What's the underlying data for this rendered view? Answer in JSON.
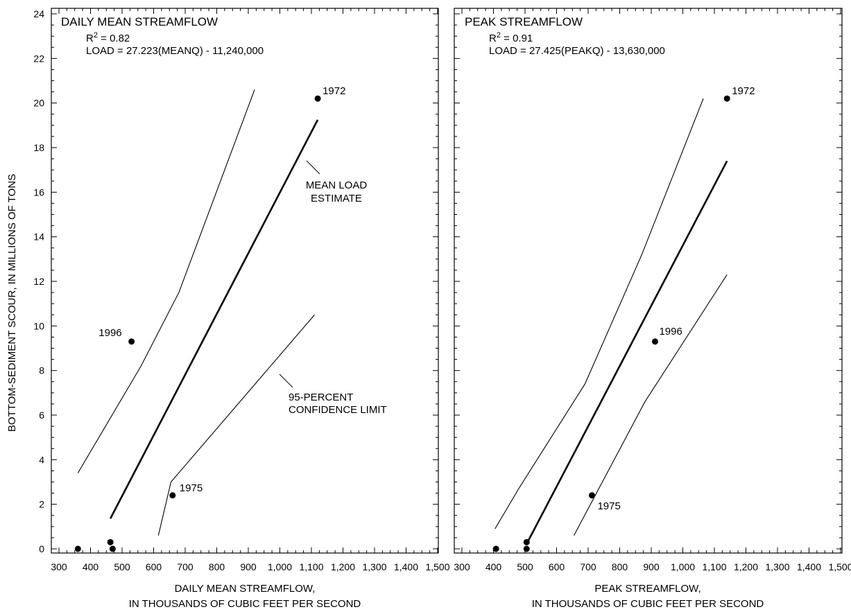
{
  "figure": {
    "y_axis_label": "BOTTOM-SEDIMENT SCOUR, IN MILLIONS OF TONS"
  },
  "chart_data": [
    {
      "type": "scatter",
      "title": "DAILY MEAN STREAMFLOW",
      "r2_prefix": "R",
      "r2_sup": "2",
      "r2_value": " = 0.82",
      "equation": "LOAD = 27.223(MEANQ) - 11,240,000",
      "xlabel_line1": "DAILY MEAN STREAMFLOW,",
      "xlabel_line2": "IN THOUSANDS OF CUBIC FEET PER SECOND",
      "ylabel": "BOTTOM-SEDIMENT SCOUR, IN MILLIONS OF TONS",
      "xlim": [
        300,
        1500
      ],
      "ylim": [
        0,
        24
      ],
      "x_ticks": [
        300,
        400,
        500,
        600,
        700,
        800,
        900,
        1000,
        1100,
        1200,
        1300,
        1400,
        1500
      ],
      "x_tick_labels": [
        "300",
        "400",
        "500",
        "600",
        "700",
        "800",
        "900",
        "1,000",
        "1,100",
        "1,200",
        "1,300",
        "1,400",
        "1,500"
      ],
      "y_ticks": [
        0,
        2,
        4,
        6,
        8,
        10,
        12,
        14,
        16,
        18,
        20,
        22,
        24
      ],
      "y_tick_labels": [
        "0",
        "2",
        "4",
        "6",
        "8",
        "10",
        "12",
        "14",
        "16",
        "18",
        "20",
        "22",
        "24"
      ],
      "points": [
        {
          "x": 360,
          "y": 0.0,
          "label": ""
        },
        {
          "x": 463,
          "y": 0.3,
          "label": ""
        },
        {
          "x": 470,
          "y": 0.0,
          "label": ""
        },
        {
          "x": 530,
          "y": 9.3,
          "label": "1996"
        },
        {
          "x": 660,
          "y": 2.4,
          "label": "1975"
        },
        {
          "x": 1120,
          "y": 20.2,
          "label": "1972"
        }
      ],
      "mean_line": {
        "x": [
          463,
          1120
        ],
        "y": [
          1.36,
          19.25
        ]
      },
      "upper_limit": {
        "x": [
          360,
          560,
          680,
          920
        ],
        "y": [
          3.4,
          8.2,
          11.5,
          20.6
        ]
      },
      "lower_limit": {
        "x": [
          615,
          655,
          1110
        ],
        "y": [
          0.6,
          3.0,
          10.5
        ]
      },
      "annotations": [
        {
          "line1": "MEAN LOAD",
          "line2": "ESTIMATE"
        },
        {
          "line1": "95-PERCENT",
          "line2": "CONFIDENCE LIMIT"
        }
      ]
    },
    {
      "type": "scatter",
      "title": "PEAK STREAMFLOW",
      "r2_prefix": "R",
      "r2_sup": "2",
      "r2_value": " = 0.91",
      "equation": "LOAD = 27.425(PEAKQ) - 13,630,000",
      "xlabel_line1": "PEAK STREAMFLOW,",
      "xlabel_line2": "IN THOUSANDS OF CUBIC FEET PER SECOND",
      "xlim": [
        300,
        1500
      ],
      "ylim": [
        0,
        24
      ],
      "x_ticks": [
        300,
        400,
        500,
        600,
        700,
        800,
        900,
        1000,
        1100,
        1200,
        1300,
        1400,
        1500
      ],
      "x_tick_labels": [
        "300",
        "400",
        "500",
        "600",
        "700",
        "800",
        "900",
        "1,000",
        "1,100",
        "1,200",
        "1,300",
        "1,400",
        "1,500"
      ],
      "points": [
        {
          "x": 408,
          "y": 0.0,
          "label": ""
        },
        {
          "x": 505,
          "y": 0.3,
          "label": ""
        },
        {
          "x": 505,
          "y": 0.0,
          "label": ""
        },
        {
          "x": 912,
          "y": 9.3,
          "label": "1996"
        },
        {
          "x": 712,
          "y": 2.4,
          "label": "1975"
        },
        {
          "x": 1140,
          "y": 20.2,
          "label": "1972"
        }
      ],
      "mean_line": {
        "x": [
          505,
          1140
        ],
        "y": [
          0.22,
          17.4
        ]
      },
      "upper_limit": {
        "x": [
          405,
          480,
          690,
          870,
          1065
        ],
        "y": [
          0.9,
          2.7,
          7.4,
          13.2,
          20.2
        ]
      },
      "lower_limit": {
        "x": [
          655,
          880,
          1140
        ],
        "y": [
          0.6,
          6.6,
          12.3
        ]
      }
    }
  ]
}
